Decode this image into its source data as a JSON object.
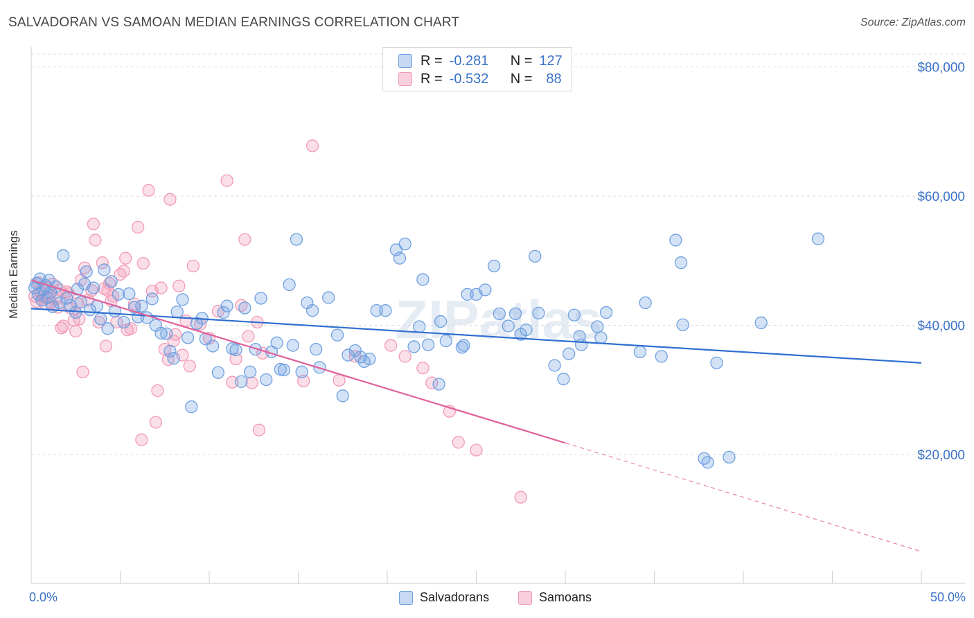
{
  "title": "SALVADORAN VS SAMOAN MEDIAN EARNINGS CORRELATION CHART",
  "source": "Source: ZipAtlas.com",
  "watermark": "ZIPatlas",
  "legend_top": [
    {
      "r_label": "R =",
      "r_value": "-0.281",
      "n_label": "N =",
      "n_value": "127"
    },
    {
      "r_label": "R =",
      "r_value": "-0.532",
      "n_label": "N =",
      "n_value": "88"
    }
  ],
  "legend_bottom": [
    "Salvadorans",
    "Samoans"
  ],
  "x_min_label": "0.0%",
  "x_max_label": "50.0%",
  "chart_data": {
    "type": "scatter",
    "title": "SALVADORAN VS SAMOAN MEDIAN EARNINGS CORRELATION CHART",
    "xlabel": "",
    "ylabel": "Median Earnings",
    "xlim": [
      0,
      50
    ],
    "ylim": [
      2000,
      82000
    ],
    "y_ticks": [
      20000,
      40000,
      60000,
      80000
    ],
    "y_tick_labels": [
      "$20,000",
      "$40,000",
      "$60,000",
      "$80,000"
    ],
    "x_tick_labels": [
      "0.0%",
      "50.0%"
    ],
    "grid": "horizontal dashed",
    "legend_placement": "top-center and bottom",
    "colors": {
      "Salvadorans": "#6fa0e0",
      "Samoans": "#f29ab8",
      "blue_line": "#2f6fd0",
      "pink_line": "#e0609a"
    },
    "series": [
      {
        "name": "Salvadorans",
        "r": -0.281,
        "n": 127,
        "trend": {
          "x0": 0,
          "y0": 42600,
          "x1": 50,
          "y1": 34200
        },
        "points": [
          [
            0.2,
            45800
          ],
          [
            0.3,
            46500
          ],
          [
            0.4,
            44800
          ],
          [
            0.5,
            47200
          ],
          [
            0.6,
            43900
          ],
          [
            0.7,
            45500
          ],
          [
            0.8,
            46200
          ],
          [
            0.9,
            44300
          ],
          [
            1.0,
            47000
          ],
          [
            1.1,
            45100
          ],
          [
            1.2,
            42900
          ],
          [
            1.4,
            46000
          ],
          [
            1.6,
            43500
          ],
          [
            1.8,
            50800
          ],
          [
            2.0,
            44200
          ],
          [
            2.2,
            43100
          ],
          [
            2.5,
            42000
          ],
          [
            2.6,
            45600
          ],
          [
            2.8,
            43600
          ],
          [
            3.0,
            46400
          ],
          [
            3.1,
            48300
          ],
          [
            3.3,
            42400
          ],
          [
            3.5,
            45800
          ],
          [
            3.7,
            43000
          ],
          [
            3.9,
            41000
          ],
          [
            4.1,
            48600
          ],
          [
            4.3,
            39500
          ],
          [
            4.5,
            46800
          ],
          [
            4.7,
            42200
          ],
          [
            4.9,
            44800
          ],
          [
            5.2,
            40500
          ],
          [
            5.5,
            44900
          ],
          [
            5.8,
            42800
          ],
          [
            6.0,
            41300
          ],
          [
            6.2,
            43000
          ],
          [
            6.5,
            41200
          ],
          [
            6.8,
            44100
          ],
          [
            7.0,
            40000
          ],
          [
            7.3,
            38800
          ],
          [
            7.6,
            38700
          ],
          [
            7.8,
            36000
          ],
          [
            8.0,
            34900
          ],
          [
            8.2,
            42100
          ],
          [
            8.5,
            44000
          ],
          [
            8.8,
            38100
          ],
          [
            9.0,
            27400
          ],
          [
            9.3,
            40300
          ],
          [
            9.6,
            41100
          ],
          [
            9.8,
            37900
          ],
          [
            10.2,
            36800
          ],
          [
            10.5,
            32700
          ],
          [
            10.8,
            42000
          ],
          [
            11.0,
            43000
          ],
          [
            11.3,
            36400
          ],
          [
            11.5,
            36200
          ],
          [
            11.8,
            31300
          ],
          [
            12.0,
            42700
          ],
          [
            12.3,
            32800
          ],
          [
            12.6,
            36300
          ],
          [
            12.9,
            44200
          ],
          [
            13.2,
            31600
          ],
          [
            13.5,
            35900
          ],
          [
            13.8,
            37300
          ],
          [
            14.0,
            33200
          ],
          [
            14.2,
            33100
          ],
          [
            14.5,
            46300
          ],
          [
            14.7,
            36900
          ],
          [
            14.9,
            53300
          ],
          [
            15.2,
            32800
          ],
          [
            15.5,
            43500
          ],
          [
            15.8,
            42300
          ],
          [
            16.0,
            36300
          ],
          [
            16.2,
            33500
          ],
          [
            16.7,
            44300
          ],
          [
            17.2,
            38500
          ],
          [
            17.5,
            29100
          ],
          [
            17.8,
            35400
          ],
          [
            18.2,
            36100
          ],
          [
            18.5,
            35100
          ],
          [
            18.7,
            34400
          ],
          [
            19.0,
            34800
          ],
          [
            19.4,
            42300
          ],
          [
            19.9,
            42300
          ],
          [
            20.5,
            51700
          ],
          [
            20.7,
            50400
          ],
          [
            21.0,
            52600
          ],
          [
            21.5,
            36700
          ],
          [
            21.8,
            39800
          ],
          [
            22.0,
            47100
          ],
          [
            22.3,
            37000
          ],
          [
            22.9,
            30900
          ],
          [
            23.0,
            40600
          ],
          [
            23.3,
            37600
          ],
          [
            24.2,
            36600
          ],
          [
            24.3,
            36900
          ],
          [
            24.5,
            44800
          ],
          [
            25.0,
            44800
          ],
          [
            25.5,
            45500
          ],
          [
            26.0,
            49200
          ],
          [
            26.3,
            41800
          ],
          [
            26.8,
            39900
          ],
          [
            27.2,
            41800
          ],
          [
            27.5,
            38600
          ],
          [
            27.8,
            39300
          ],
          [
            28.3,
            50700
          ],
          [
            28.5,
            41900
          ],
          [
            29.4,
            33800
          ],
          [
            29.9,
            31700
          ],
          [
            30.2,
            35600
          ],
          [
            30.5,
            41600
          ],
          [
            30.8,
            38300
          ],
          [
            30.9,
            37000
          ],
          [
            31.8,
            39800
          ],
          [
            32.3,
            42000
          ],
          [
            34.2,
            35900
          ],
          [
            32.0,
            38100
          ],
          [
            34.5,
            43500
          ],
          [
            35.4,
            35200
          ],
          [
            36.6,
            40100
          ],
          [
            37.8,
            19400
          ],
          [
            36.2,
            53200
          ],
          [
            36.5,
            49700
          ],
          [
            38.5,
            34200
          ],
          [
            41.0,
            40400
          ],
          [
            44.2,
            53400
          ],
          [
            38.0,
            18800
          ],
          [
            39.2,
            19600
          ]
        ]
      },
      {
        "name": "Samoans",
        "r": -0.532,
        "n": 88,
        "trend": {
          "x0": 0,
          "y0": 47000,
          "x1": 30,
          "y1": 21800,
          "dash_to_x": 50,
          "dash_to_y": 5000
        },
        "points": [
          [
            0.2,
            44500
          ],
          [
            0.3,
            43700
          ],
          [
            0.4,
            46600
          ],
          [
            0.5,
            45200
          ],
          [
            0.6,
            43900
          ],
          [
            0.7,
            44400
          ],
          [
            0.8,
            43300
          ],
          [
            0.9,
            45800
          ],
          [
            1.0,
            44300
          ],
          [
            1.1,
            43500
          ],
          [
            1.2,
            46400
          ],
          [
            1.4,
            44100
          ],
          [
            1.5,
            42800
          ],
          [
            1.6,
            45500
          ],
          [
            1.7,
            39600
          ],
          [
            1.8,
            39900
          ],
          [
            2.0,
            45200
          ],
          [
            2.1,
            44900
          ],
          [
            2.2,
            42700
          ],
          [
            2.4,
            40800
          ],
          [
            2.5,
            39100
          ],
          [
            2.6,
            43400
          ],
          [
            2.7,
            41000
          ],
          [
            2.8,
            47000
          ],
          [
            2.9,
            32800
          ],
          [
            3.0,
            48900
          ],
          [
            3.2,
            43900
          ],
          [
            3.4,
            45400
          ],
          [
            3.5,
            55700
          ],
          [
            3.6,
            53200
          ],
          [
            3.8,
            40500
          ],
          [
            4.0,
            49700
          ],
          [
            4.1,
            45700
          ],
          [
            4.2,
            36800
          ],
          [
            4.3,
            45400
          ],
          [
            4.4,
            46500
          ],
          [
            4.5,
            43800
          ],
          [
            4.6,
            44500
          ],
          [
            4.8,
            40500
          ],
          [
            5.0,
            47900
          ],
          [
            5.2,
            48400
          ],
          [
            5.3,
            50400
          ],
          [
            5.4,
            39300
          ],
          [
            5.6,
            39500
          ],
          [
            5.8,
            43300
          ],
          [
            6.0,
            55200
          ],
          [
            6.2,
            22300
          ],
          [
            6.3,
            49600
          ],
          [
            6.6,
            60900
          ],
          [
            6.8,
            45300
          ],
          [
            7.0,
            25000
          ],
          [
            7.1,
            29900
          ],
          [
            7.3,
            45800
          ],
          [
            7.5,
            36300
          ],
          [
            7.7,
            34700
          ],
          [
            7.8,
            59500
          ],
          [
            8.0,
            37600
          ],
          [
            8.1,
            38600
          ],
          [
            8.3,
            46100
          ],
          [
            8.5,
            35400
          ],
          [
            8.7,
            40700
          ],
          [
            8.9,
            33700
          ],
          [
            9.1,
            49200
          ],
          [
            9.5,
            40200
          ],
          [
            10.0,
            38000
          ],
          [
            10.5,
            42200
          ],
          [
            11.0,
            62400
          ],
          [
            11.3,
            31200
          ],
          [
            11.5,
            34800
          ],
          [
            11.8,
            43100
          ],
          [
            12.0,
            53300
          ],
          [
            12.2,
            38300
          ],
          [
            12.7,
            40500
          ],
          [
            13.0,
            35700
          ],
          [
            12.4,
            31100
          ],
          [
            12.8,
            23800
          ],
          [
            15.3,
            31400
          ],
          [
            17.3,
            31500
          ],
          [
            18.2,
            35200
          ],
          [
            20.2,
            36900
          ],
          [
            21.0,
            35200
          ],
          [
            22.0,
            33400
          ],
          [
            22.5,
            31100
          ],
          [
            23.5,
            26700
          ],
          [
            24.0,
            21900
          ],
          [
            25.0,
            20700
          ],
          [
            15.8,
            67800
          ],
          [
            27.5,
            13400
          ]
        ]
      }
    ]
  }
}
